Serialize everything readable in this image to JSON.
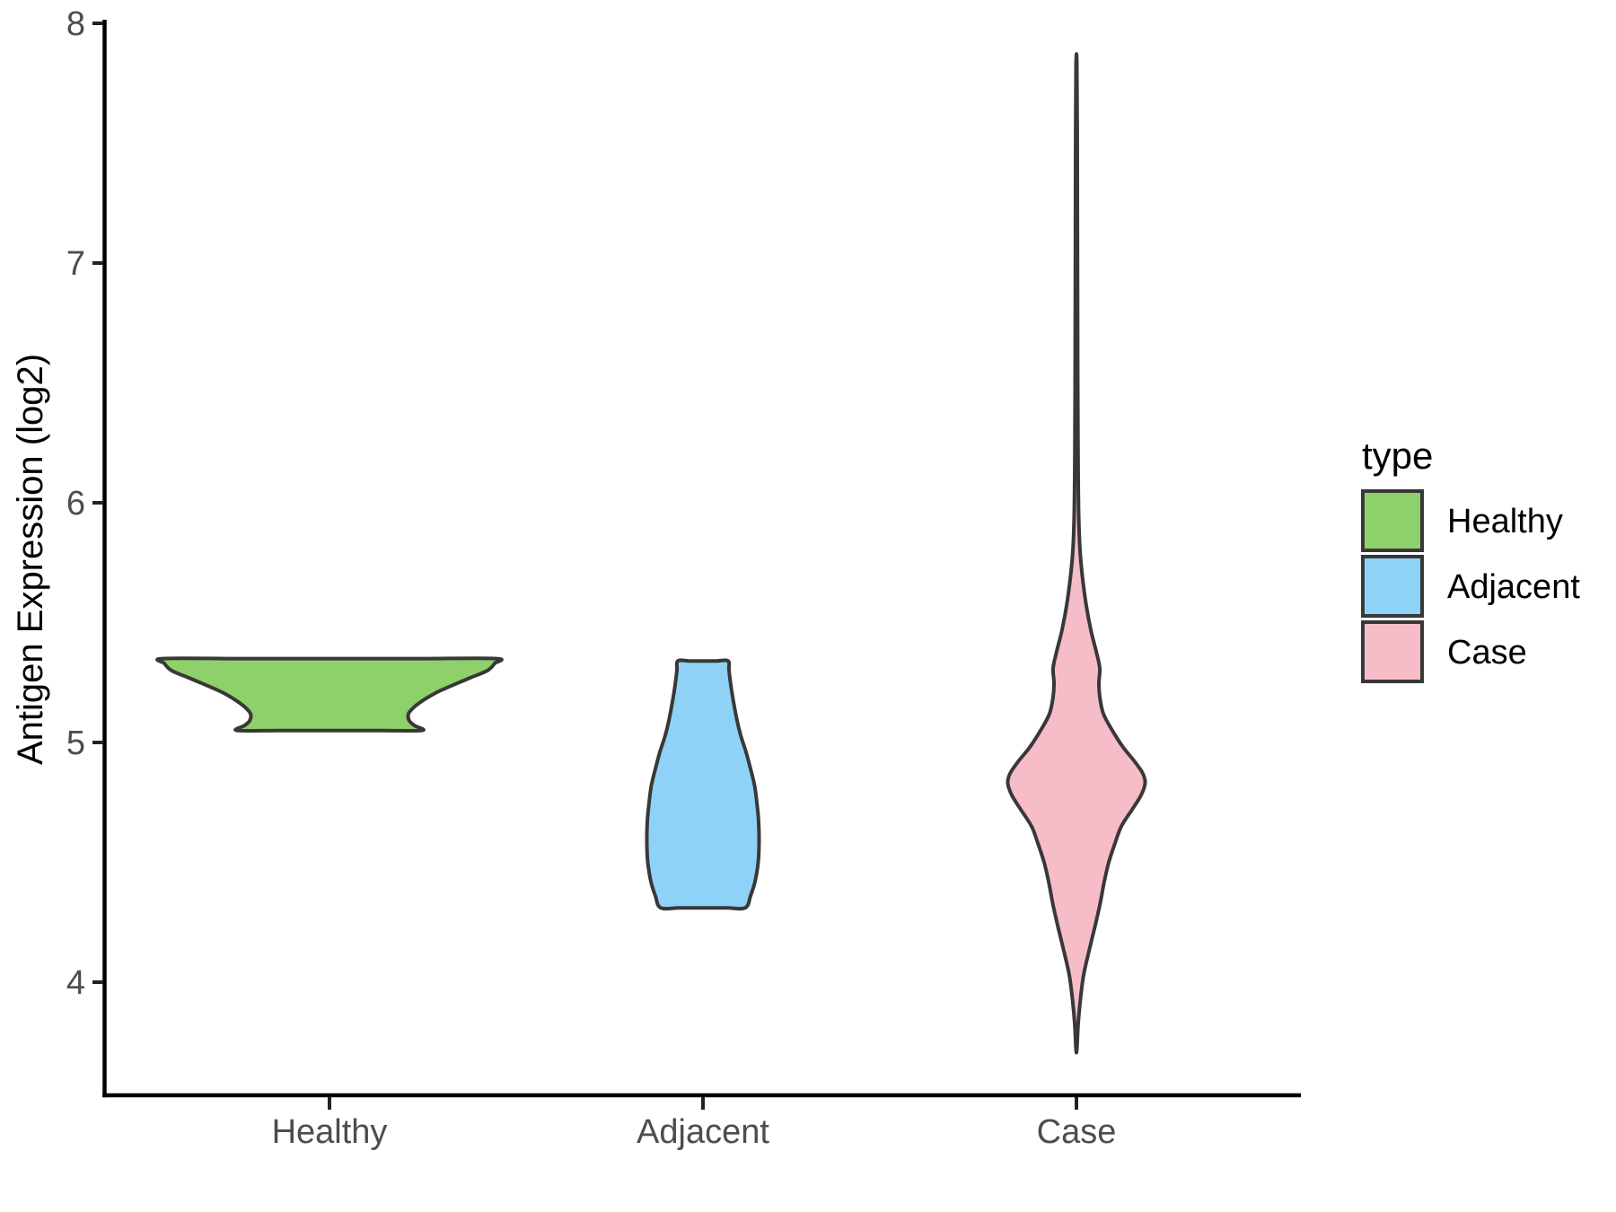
{
  "figure": {
    "background": "#ffffff",
    "y_axis": {
      "title": "Antigen Expression (log2)",
      "tick_labels": [
        "8",
        "7",
        "6",
        "5",
        "4"
      ],
      "tick_values": [
        8,
        7,
        6,
        5,
        4
      ]
    },
    "x_axis": {
      "categories": [
        "Healthy",
        "Adjacent",
        "Case"
      ]
    },
    "legend": {
      "title": "type",
      "entries": [
        {
          "label": "Healthy",
          "color": "#8ed06a"
        },
        {
          "label": "Adjacent",
          "color": "#8fd2f7"
        },
        {
          "label": "Case",
          "color": "#f6bdc9"
        }
      ]
    }
  },
  "chart_data": {
    "type": "violin",
    "title": "",
    "xlabel": "",
    "ylabel": "Antigen Expression (log2)",
    "categories": [
      "Healthy",
      "Adjacent",
      "Case"
    ],
    "ylim": [
      3.5,
      8.0
    ],
    "yticks": [
      4,
      5,
      6,
      7,
      8
    ],
    "grid": false,
    "legend_title": "type",
    "legend_position": "right",
    "outline_color": "#383838",
    "axis_color": "#000000",
    "tick_text_color": "#4d4d4d",
    "series": [
      {
        "name": "Healthy",
        "fill": "#8ed06a",
        "value_range": [
          5.05,
          5.35
        ],
        "cap_top": "flat",
        "cap_bottom": "flat",
        "density": [
          [
            5.35,
            186
          ],
          [
            5.33,
            184
          ],
          [
            5.3,
            176
          ],
          [
            5.27,
            157
          ],
          [
            5.24,
            138
          ],
          [
            5.21,
            120
          ],
          [
            5.18,
            106
          ],
          [
            5.15,
            95
          ],
          [
            5.12,
            88
          ],
          [
            5.09,
            89
          ],
          [
            5.07,
            95
          ],
          [
            5.05,
            103
          ]
        ]
      },
      {
        "name": "Adjacent",
        "fill": "#8fd2f7",
        "value_range": [
          4.31,
          5.34
        ],
        "cap_top": "flat",
        "cap_bottom": "flat",
        "density": [
          [
            5.34,
            28
          ],
          [
            5.3,
            29
          ],
          [
            5.24,
            31
          ],
          [
            5.17,
            34
          ],
          [
            5.1,
            37.5
          ],
          [
            5.03,
            42
          ],
          [
            4.96,
            48
          ],
          [
            4.89,
            53
          ],
          [
            4.82,
            57.5
          ],
          [
            4.75,
            60
          ],
          [
            4.67,
            62
          ],
          [
            4.58,
            62.5
          ],
          [
            4.5,
            61.5
          ],
          [
            4.42,
            58
          ],
          [
            4.36,
            53
          ],
          [
            4.31,
            47
          ]
        ]
      },
      {
        "name": "Case",
        "fill": "#f6bdc9",
        "value_range": [
          3.72,
          7.82
        ],
        "cap_top": "point",
        "cap_bottom": "point",
        "density": [
          [
            7.82,
            0.5
          ],
          [
            7.4,
            1.0
          ],
          [
            7.0,
            1.2
          ],
          [
            6.6,
            1.4
          ],
          [
            6.2,
            1.8
          ],
          [
            5.95,
            2.5
          ],
          [
            5.8,
            4
          ],
          [
            5.68,
            7
          ],
          [
            5.57,
            11
          ],
          [
            5.47,
            16
          ],
          [
            5.38,
            22
          ],
          [
            5.31,
            26
          ],
          [
            5.25,
            25
          ],
          [
            5.19,
            26
          ],
          [
            5.12,
            30
          ],
          [
            5.05,
            40
          ],
          [
            4.98,
            52
          ],
          [
            4.92,
            65
          ],
          [
            4.87,
            74
          ],
          [
            4.83,
            76.5
          ],
          [
            4.78,
            72
          ],
          [
            4.72,
            62
          ],
          [
            4.65,
            50
          ],
          [
            4.58,
            43
          ],
          [
            4.5,
            36
          ],
          [
            4.42,
            31
          ],
          [
            4.33,
            26.5
          ],
          [
            4.23,
            20.5
          ],
          [
            4.13,
            14
          ],
          [
            4.03,
            8
          ],
          [
            3.93,
            4.5
          ],
          [
            3.83,
            2
          ],
          [
            3.72,
            0.5
          ]
        ]
      }
    ]
  }
}
